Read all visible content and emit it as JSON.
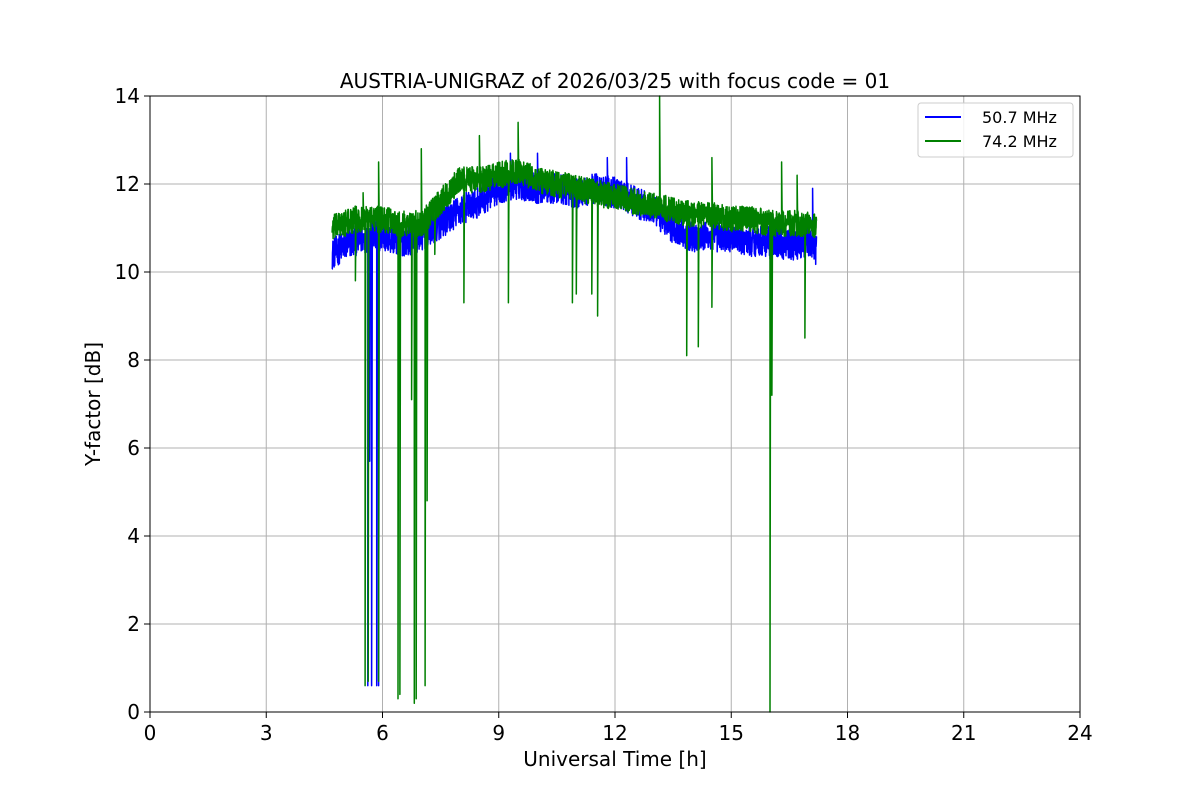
{
  "chart_data": {
    "type": "line",
    "title": "AUSTRIA-UNIGRAZ of 2026/03/25 with focus code = 01",
    "xlabel": "Universal Time [h]",
    "ylabel": "Y-factor [dB]",
    "xlim": [
      0,
      24
    ],
    "ylim": [
      0,
      14
    ],
    "xticks": [
      0,
      3,
      6,
      9,
      12,
      15,
      18,
      21,
      24
    ],
    "yticks": [
      0,
      2,
      4,
      6,
      8,
      10,
      12,
      14
    ],
    "xtick_labels": [
      "0",
      "3",
      "6",
      "9",
      "12",
      "15",
      "18",
      "21",
      "24"
    ],
    "ytick_labels": [
      "0",
      "2",
      "4",
      "6",
      "8",
      "10",
      "12",
      "14"
    ],
    "grid": true,
    "legend_position": "top-right",
    "series": [
      {
        "name": "50.7 MHz",
        "color": "#0000ff",
        "x": [
          4.7,
          5.0,
          5.3,
          5.6,
          6.0,
          6.5,
          7.0,
          7.5,
          8.0,
          8.5,
          9.0,
          9.5,
          10.0,
          10.5,
          11.0,
          11.5,
          12.0,
          12.5,
          13.0,
          13.5,
          14.0,
          14.5,
          15.0,
          15.5,
          16.0,
          16.5,
          17.0,
          17.2
        ],
        "y": [
          10.4,
          10.6,
          10.7,
          10.8,
          10.8,
          10.7,
          10.8,
          11.1,
          11.4,
          11.6,
          11.9,
          12.0,
          11.9,
          11.9,
          11.8,
          11.9,
          11.8,
          11.6,
          11.4,
          11.0,
          10.8,
          10.8,
          10.8,
          10.7,
          10.7,
          10.6,
          10.7,
          10.5
        ],
        "noise": 0.35,
        "dips": [
          [
            5.62,
            0.6
          ],
          [
            5.72,
            0.6
          ],
          [
            5.85,
            0.6
          ],
          [
            5.9,
            0.6
          ],
          [
            5.67,
            5.7
          ]
        ],
        "spikes": [
          [
            9.3,
            12.7
          ],
          [
            10.0,
            12.7
          ],
          [
            11.8,
            12.6
          ],
          [
            12.3,
            12.6
          ],
          [
            16.0,
            10.3
          ],
          [
            17.1,
            11.9
          ]
        ]
      },
      {
        "name": "74.2 MHz",
        "color": "#008000",
        "x": [
          4.7,
          5.0,
          5.3,
          5.6,
          6.0,
          6.5,
          7.0,
          7.5,
          8.0,
          8.5,
          9.0,
          9.5,
          10.0,
          10.5,
          11.0,
          11.5,
          12.0,
          12.5,
          13.0,
          13.5,
          14.0,
          14.5,
          15.0,
          15.5,
          16.0,
          16.5,
          17.0,
          17.2
        ],
        "y": [
          11.0,
          11.1,
          11.2,
          11.2,
          11.2,
          11.1,
          11.1,
          11.6,
          12.1,
          12.1,
          12.2,
          12.3,
          12.1,
          12.0,
          11.9,
          11.8,
          11.7,
          11.6,
          11.5,
          11.4,
          11.3,
          11.3,
          11.2,
          11.2,
          11.1,
          11.1,
          11.1,
          11.0
        ],
        "noise": 0.3,
        "dips": [
          [
            5.55,
            0.6
          ],
          [
            5.63,
            0.7
          ],
          [
            5.9,
            0.7
          ],
          [
            6.4,
            0.3
          ],
          [
            6.45,
            0.4
          ],
          [
            6.75,
            7.1
          ],
          [
            6.82,
            0.2
          ],
          [
            6.87,
            0.3
          ],
          [
            7.1,
            0.6
          ],
          [
            7.15,
            4.8
          ],
          [
            5.3,
            9.8
          ],
          [
            7.35,
            10.4
          ],
          [
            8.1,
            9.3
          ],
          [
            9.25,
            9.3
          ],
          [
            10.9,
            9.3
          ],
          [
            11.0,
            9.5
          ],
          [
            11.4,
            9.5
          ],
          [
            11.55,
            9.0
          ],
          [
            13.85,
            8.1
          ],
          [
            14.15,
            8.3
          ],
          [
            14.5,
            9.2
          ],
          [
            16.0,
            0.0
          ],
          [
            16.05,
            7.2
          ],
          [
            16.9,
            8.5
          ]
        ],
        "spikes": [
          [
            5.5,
            11.8
          ],
          [
            5.9,
            12.5
          ],
          [
            7.0,
            12.8
          ],
          [
            8.5,
            13.1
          ],
          [
            9.5,
            13.4
          ],
          [
            13.15,
            14.0
          ],
          [
            14.5,
            12.6
          ],
          [
            16.3,
            12.5
          ],
          [
            16.7,
            12.2
          ]
        ]
      }
    ]
  }
}
